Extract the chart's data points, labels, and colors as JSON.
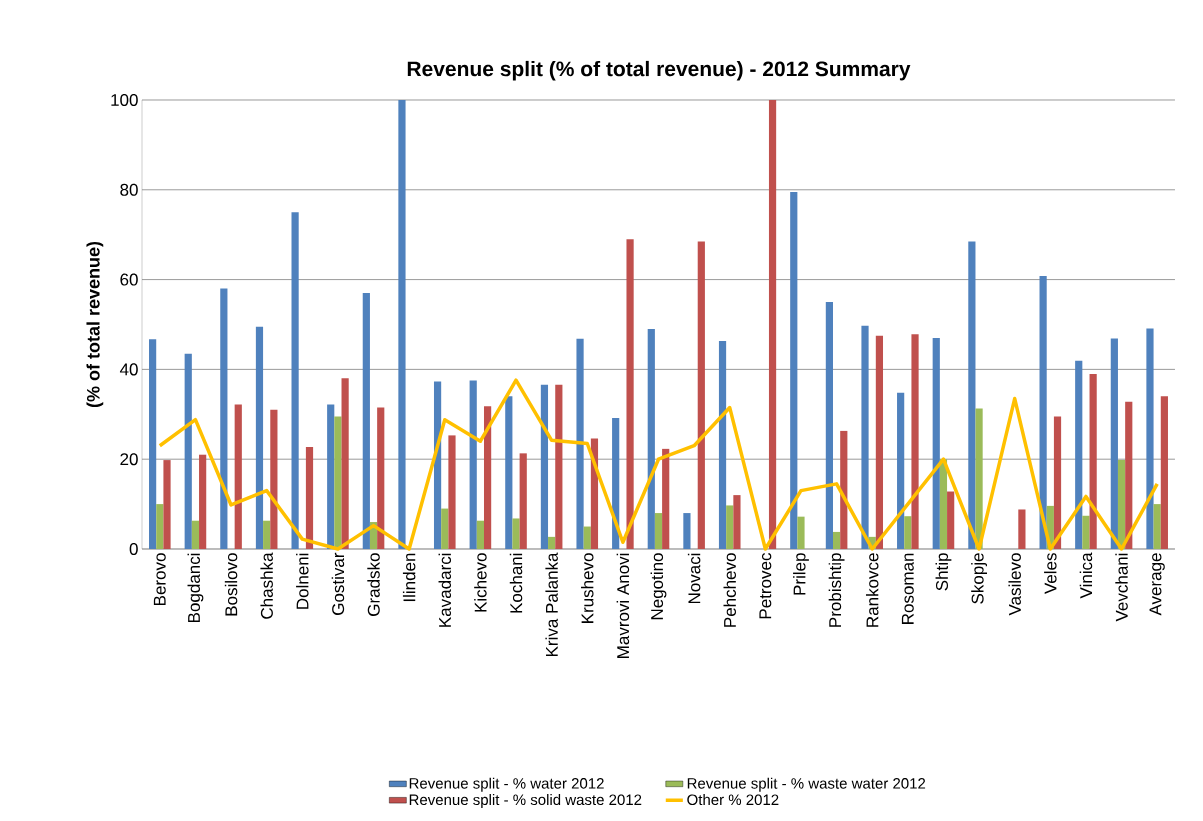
{
  "chart_data": {
    "type": "bar",
    "title": "Revenue split (% of total revenue) - 2012 Summary",
    "ylabel": "(% of total revenue)",
    "categories": [
      "Berovo",
      "Bogdanci",
      "Bosilovo",
      "Chashka",
      "Dolneni",
      "Gostivar",
      "Gradsko",
      "Ilinden",
      "Kavadarci",
      "Kichevo",
      "Kochani",
      "Kriva Palanka",
      "Krushevo",
      "Mavrovi Anovi",
      "Negotino",
      "Novaci",
      "Pehchevo",
      "Petrovec",
      "Prilep",
      "Probishtip",
      "Rankovce",
      "Rosoman",
      "Shtip",
      "Skopje",
      "Vasilevo",
      "Veles",
      "Vinica",
      "Vevchani",
      "Average"
    ],
    "series": [
      {
        "name": "Revenue split - % water 2012",
        "color": "#4f81bd",
        "values": [
          46.7,
          43.5,
          58,
          49.5,
          75,
          32.2,
          57,
          100,
          37.3,
          37.5,
          34,
          36.6,
          46.8,
          29.2,
          49,
          8,
          46.3,
          0,
          79.5,
          55,
          49.7,
          34.8,
          47,
          68.5,
          0,
          60.8,
          41.9,
          46.9,
          49.1
        ]
      },
      {
        "name": "Revenue split - % waste water 2012",
        "color": "#9bbb59",
        "values": [
          10,
          6.3,
          0,
          6.3,
          0,
          29.5,
          6,
          0,
          9,
          6.3,
          6.8,
          2.7,
          5,
          0,
          8,
          0,
          9.7,
          0,
          7.2,
          3.8,
          2.7,
          7.3,
          20,
          31.3,
          0,
          9.6,
          7.4,
          19.8,
          10
        ]
      },
      {
        "name": "Revenue split - % solid waste  2012",
        "color": "#c0504d",
        "values": [
          19.8,
          21,
          32.2,
          31,
          22.7,
          38,
          31.5,
          0,
          25.3,
          31.8,
          21.3,
          36.6,
          24.6,
          69,
          22.3,
          68.5,
          12,
          100,
          0,
          26.3,
          47.5,
          47.8,
          12.8,
          0,
          8.8,
          29.5,
          39,
          32.8,
          34
        ]
      },
      {
        "name": "Other  % 2012",
        "type": "line",
        "color": "#ffc000",
        "values": [
          23,
          28.8,
          9.8,
          13,
          2.2,
          0,
          5.2,
          0,
          28.8,
          24,
          37.6,
          24.2,
          23.5,
          1.5,
          20,
          23,
          31.5,
          0,
          13,
          14.5,
          0,
          10,
          20,
          0,
          33.5,
          0,
          11.7,
          0,
          14.5
        ]
      }
    ],
    "ylim": [
      0,
      100
    ],
    "yticks": [
      0,
      20,
      40,
      60,
      80,
      100
    ],
    "grid": "y",
    "legend": "bottom",
    "marker": "none",
    "line_style": "solid"
  }
}
